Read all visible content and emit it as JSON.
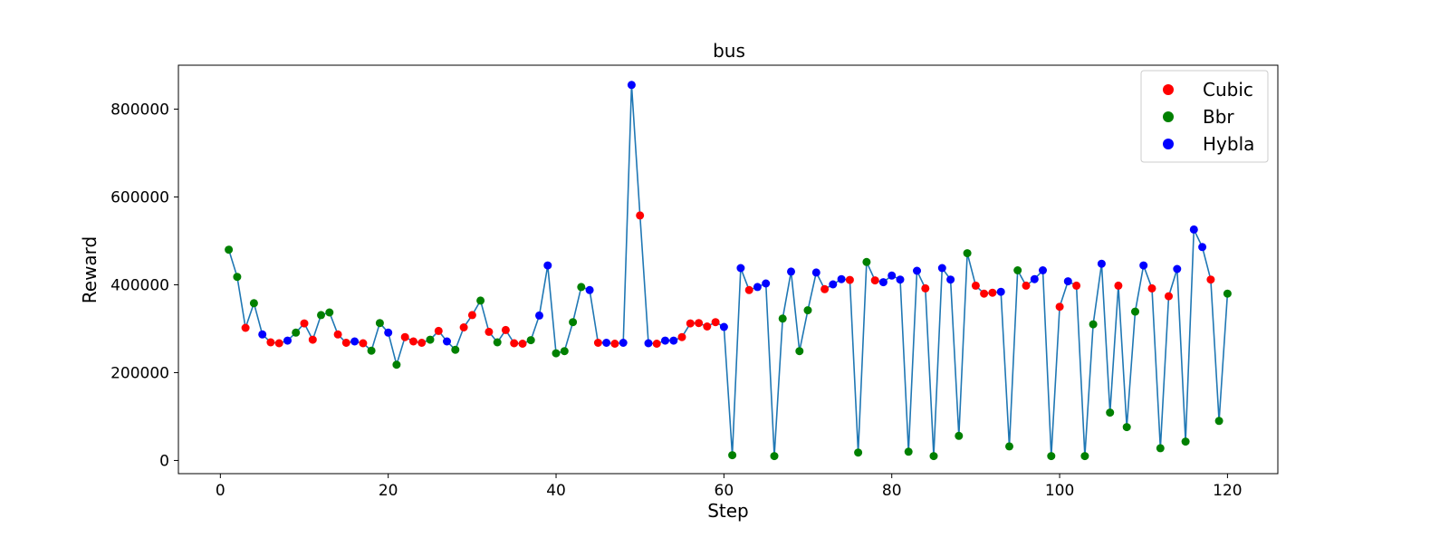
{
  "chart_data": {
    "type": "line",
    "title": "bus",
    "xlabel": "Step",
    "ylabel": "Reward",
    "xlim": [
      -5,
      126
    ],
    "ylim": [
      -30000,
      900000
    ],
    "xticks": [
      0,
      20,
      40,
      60,
      80,
      100,
      120
    ],
    "yticks": [
      0,
      200000,
      400000,
      600000,
      800000
    ],
    "grid": false,
    "line_color": "#1f77b4",
    "legend": {
      "placement": "top-right",
      "entries": [
        {
          "name": "Cubic",
          "color": "#ff0000"
        },
        {
          "name": "Bbr",
          "color": "#008000"
        },
        {
          "name": "Hybla",
          "color": "#0000ff"
        }
      ]
    },
    "x": [
      1,
      2,
      3,
      4,
      5,
      6,
      7,
      8,
      9,
      10,
      11,
      12,
      13,
      14,
      15,
      16,
      17,
      18,
      19,
      20,
      21,
      22,
      23,
      24,
      25,
      26,
      27,
      28,
      29,
      30,
      31,
      32,
      33,
      34,
      35,
      36,
      37,
      38,
      39,
      40,
      41,
      42,
      43,
      44,
      45,
      46,
      47,
      48,
      49,
      50,
      51,
      52,
      53,
      54,
      55,
      56,
      57,
      58,
      59,
      60,
      61,
      62,
      63,
      64,
      65,
      66,
      67,
      68,
      69,
      70,
      71,
      72,
      73,
      74,
      75,
      76,
      77,
      78,
      79,
      80,
      81,
      82,
      83,
      84,
      85,
      86,
      87,
      88,
      89,
      90,
      91,
      92,
      93,
      94,
      95,
      96,
      97,
      98,
      99,
      100,
      101,
      102,
      103,
      104,
      105,
      106,
      107,
      108,
      109,
      110,
      111,
      112,
      113,
      114,
      115,
      116,
      117,
      118,
      119,
      120
    ],
    "y": [
      480000,
      418000,
      302000,
      358000,
      287000,
      269000,
      267000,
      273000,
      291000,
      312000,
      275000,
      331000,
      337000,
      287000,
      268000,
      271000,
      267000,
      250000,
      313000,
      291000,
      218000,
      281000,
      271000,
      268000,
      275000,
      295000,
      271000,
      252000,
      303000,
      331000,
      364000,
      293000,
      269000,
      297000,
      267000,
      266000,
      274000,
      330000,
      444000,
      244000,
      249000,
      315000,
      395000,
      388000,
      268000,
      268000,
      266000,
      268000,
      855000,
      558000,
      267000,
      266000,
      273000,
      273000,
      281000,
      312000,
      313000,
      305000,
      315000,
      304000,
      12000,
      438000,
      388000,
      395000,
      403000,
      10000,
      323000,
      430000,
      249000,
      342000,
      428000,
      390000,
      401000,
      413000,
      411000,
      18000,
      452000,
      410000,
      406000,
      421000,
      412000,
      20000,
      432000,
      392000,
      10000,
      438000,
      412000,
      56000,
      472000,
      398000,
      380000,
      382000,
      384000,
      32000,
      433000,
      398000,
      413000,
      433000,
      10000,
      350000,
      408000,
      398000,
      10000,
      310000,
      448000,
      109000,
      398000,
      76000,
      339000,
      444000,
      392000,
      28000,
      374000,
      436000,
      43000,
      526000,
      486000,
      412000,
      90000,
      380000
    ],
    "colors": [
      "Bbr",
      "Bbr",
      "Cubic",
      "Bbr",
      "Hybla",
      "Cubic",
      "Cubic",
      "Hybla",
      "Bbr",
      "Cubic",
      "Cubic",
      "Bbr",
      "Bbr",
      "Cubic",
      "Cubic",
      "Hybla",
      "Cubic",
      "Bbr",
      "Bbr",
      "Hybla",
      "Bbr",
      "Cubic",
      "Cubic",
      "Cubic",
      "Bbr",
      "Cubic",
      "Hybla",
      "Bbr",
      "Cubic",
      "Cubic",
      "Bbr",
      "Cubic",
      "Bbr",
      "Cubic",
      "Cubic",
      "Cubic",
      "Bbr",
      "Hybla",
      "Hybla",
      "Bbr",
      "Bbr",
      "Bbr",
      "Bbr",
      "Hybla",
      "Cubic",
      "Hybla",
      "Cubic",
      "Hybla",
      "Hybla",
      "Cubic",
      "Hybla",
      "Cubic",
      "Hybla",
      "Hybla",
      "Cubic",
      "Cubic",
      "Cubic",
      "Cubic",
      "Cubic",
      "Hybla",
      "Bbr",
      "Hybla",
      "Cubic",
      "Hybla",
      "Hybla",
      "Bbr",
      "Bbr",
      "Hybla",
      "Bbr",
      "Bbr",
      "Hybla",
      "Cubic",
      "Hybla",
      "Hybla",
      "Cubic",
      "Bbr",
      "Bbr",
      "Cubic",
      "Hybla",
      "Hybla",
      "Hybla",
      "Bbr",
      "Hybla",
      "Cubic",
      "Bbr",
      "Hybla",
      "Hybla",
      "Bbr",
      "Bbr",
      "Cubic",
      "Cubic",
      "Cubic",
      "Hybla",
      "Bbr",
      "Bbr",
      "Cubic",
      "Hybla",
      "Hybla",
      "Bbr",
      "Cubic",
      "Hybla",
      "Cubic",
      "Bbr",
      "Bbr",
      "Hybla",
      "Bbr",
      "Cubic",
      "Bbr",
      "Bbr",
      "Hybla",
      "Cubic",
      "Bbr",
      "Cubic",
      "Hybla",
      "Bbr",
      "Hybla",
      "Hybla",
      "Cubic",
      "Bbr",
      "Bbr"
    ]
  }
}
